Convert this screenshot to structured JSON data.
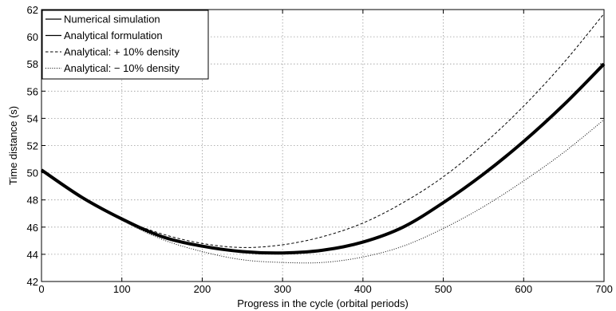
{
  "chart_data": {
    "type": "line",
    "xlabel": "Progress in the cycle (orbital periods)",
    "ylabel": "Time distance (s)",
    "xlim": [
      0,
      700
    ],
    "ylim": [
      42,
      62
    ],
    "xticks": [
      0,
      100,
      200,
      300,
      400,
      500,
      600,
      700
    ],
    "yticks": [
      42,
      44,
      46,
      48,
      50,
      52,
      54,
      56,
      58,
      60,
      62
    ],
    "grid": true,
    "legend_position": "top-left",
    "series": [
      {
        "name": "Numerical simulation",
        "style": "solid-thick",
        "color": "#000000",
        "x": [
          0,
          50,
          100,
          150,
          200,
          250,
          300,
          350,
          400,
          450,
          500,
          550,
          600,
          650,
          700
        ],
        "y": [
          50.2,
          48.2,
          46.6,
          45.3,
          44.6,
          44.2,
          44.1,
          44.3,
          44.9,
          46.0,
          47.8,
          49.9,
          52.3,
          55.0,
          58.0
        ]
      },
      {
        "name": "Analytical formulation",
        "style": "solid",
        "color": "#000000",
        "x": [
          0,
          50,
          100,
          150,
          200,
          250,
          300,
          350,
          400,
          450,
          500,
          550,
          600,
          650,
          700
        ],
        "y": [
          50.2,
          48.2,
          46.6,
          45.3,
          44.6,
          44.2,
          44.1,
          44.3,
          44.9,
          46.0,
          47.8,
          49.9,
          52.3,
          55.0,
          58.0
        ]
      },
      {
        "name": "Analytical: + 10% density",
        "style": "dashed",
        "color": "#000000",
        "x": [
          0,
          50,
          100,
          150,
          200,
          250,
          300,
          350,
          400,
          450,
          500,
          550,
          600,
          650,
          700
        ],
        "y": [
          50.2,
          48.2,
          46.6,
          45.5,
          44.8,
          44.5,
          44.7,
          45.3,
          46.3,
          47.8,
          49.7,
          52.1,
          54.9,
          58.1,
          61.7
        ]
      },
      {
        "name": "Analytical: − 10% density",
        "style": "dotted",
        "color": "#000000",
        "x": [
          0,
          50,
          100,
          150,
          200,
          250,
          300,
          350,
          400,
          450,
          500,
          550,
          600,
          650,
          700
        ],
        "y": [
          50.2,
          48.2,
          46.5,
          45.1,
          44.2,
          43.6,
          43.4,
          43.4,
          43.8,
          44.6,
          45.9,
          47.5,
          49.4,
          51.5,
          53.9
        ]
      }
    ]
  }
}
